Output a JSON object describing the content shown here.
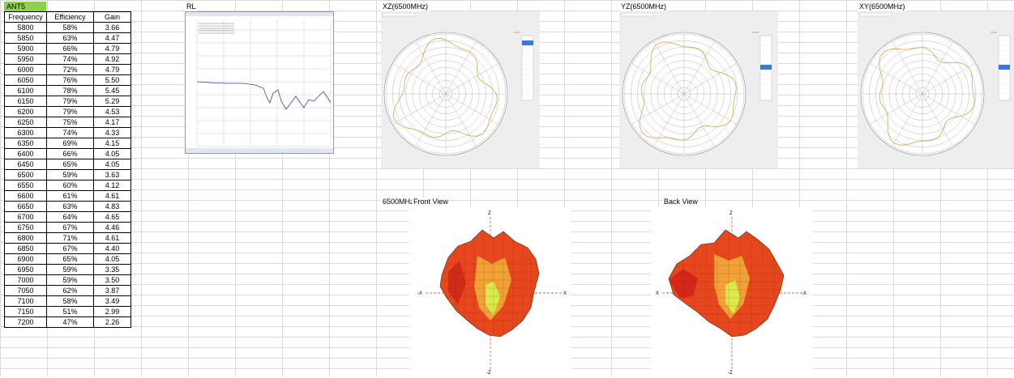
{
  "ant_label": "ANT5",
  "table": {
    "headers": [
      "Frequency",
      "Efficiency",
      "Gain"
    ],
    "rows": [
      [
        "5800",
        "58%",
        "3.66"
      ],
      [
        "5850",
        "63%",
        "4.47"
      ],
      [
        "5900",
        "66%",
        "4.79"
      ],
      [
        "5950",
        "74%",
        "4.92"
      ],
      [
        "6000",
        "72%",
        "4.79"
      ],
      [
        "6050",
        "76%",
        "5.50"
      ],
      [
        "6100",
        "78%",
        "5.45"
      ],
      [
        "6150",
        "79%",
        "5.29"
      ],
      [
        "6200",
        "79%",
        "4.53"
      ],
      [
        "6250",
        "75%",
        "4.17"
      ],
      [
        "6300",
        "74%",
        "4.33"
      ],
      [
        "6350",
        "69%",
        "4.15"
      ],
      [
        "6400",
        "66%",
        "4.05"
      ],
      [
        "6450",
        "65%",
        "4.05"
      ],
      [
        "6500",
        "59%",
        "3.63"
      ],
      [
        "6550",
        "60%",
        "4.12"
      ],
      [
        "6600",
        "61%",
        "4.61"
      ],
      [
        "6650",
        "63%",
        "4.83"
      ],
      [
        "6700",
        "64%",
        "4.65"
      ],
      [
        "6750",
        "67%",
        "4.46"
      ],
      [
        "6800",
        "71%",
        "4.61"
      ],
      [
        "6850",
        "67%",
        "4.40"
      ],
      [
        "6900",
        "65%",
        "4.05"
      ],
      [
        "6950",
        "59%",
        "3.35"
      ],
      [
        "7000",
        "59%",
        "3.50"
      ],
      [
        "7050",
        "62%",
        "3.87"
      ],
      [
        "7100",
        "58%",
        "3.49"
      ],
      [
        "7150",
        "51%",
        "2.99"
      ],
      [
        "7200",
        "47%",
        "2.26"
      ]
    ]
  },
  "rl_label": "RL",
  "xz_label": "XZ(6500MHz)",
  "yz_label": "YZ(6500MHz)",
  "xy_label": "XY(6500MHz)",
  "freq_label": "6500MHz",
  "front_label": "Front View",
  "back_label": "Back View",
  "front_axes": {
    "top": "Z",
    "bottom": "-Z",
    "left": "-X",
    "right": "X"
  },
  "back_axes": {
    "top": "Z",
    "bottom": "-Z",
    "left": "X",
    "right": "-X"
  },
  "colors": {
    "header_green": "#8fd14f",
    "rl_trace": "#3344aa",
    "polar_trace": "#d8a24a",
    "pattern_red": "#e02a1a",
    "pattern_yellow": "#f4e23a"
  }
}
